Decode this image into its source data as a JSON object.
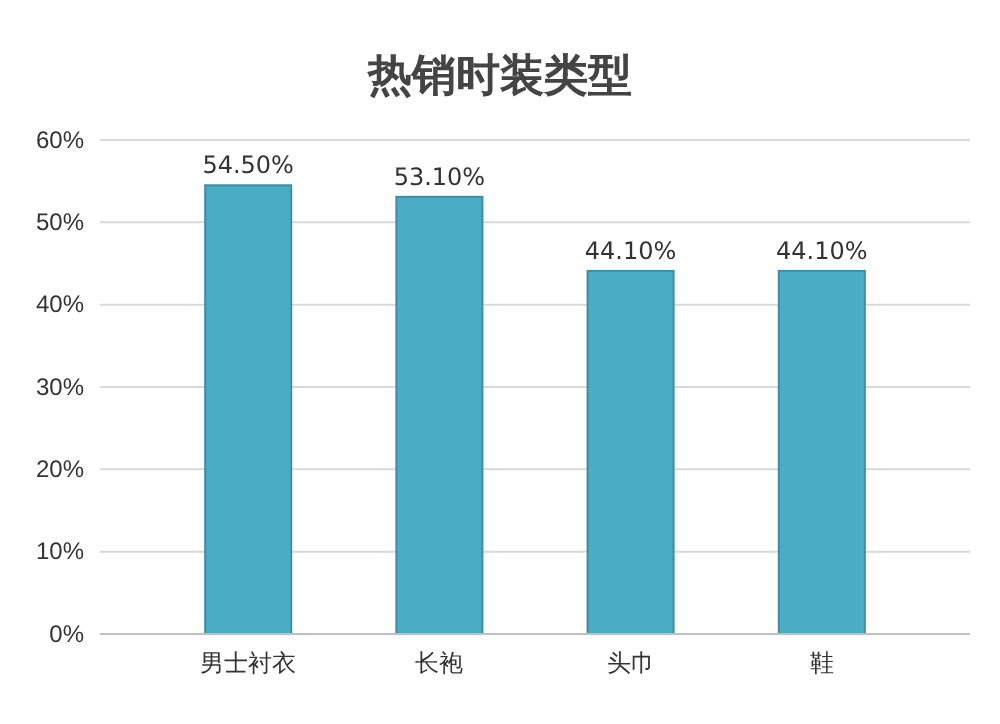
{
  "chart_data": {
    "type": "bar",
    "title": "热销时装类型",
    "categories": [
      "男士衬衣",
      "长袍",
      "头巾",
      "鞋"
    ],
    "values": [
      54.5,
      53.1,
      44.1,
      44.1
    ],
    "value_labels": [
      "54.50%",
      "53.10%",
      "44.10%",
      "44.10%"
    ],
    "color": "#4bacc6",
    "ylim": [
      0,
      60
    ],
    "yticks": [
      {
        "value": 0,
        "label": "0%"
      },
      {
        "value": 10,
        "label": "10%"
      },
      {
        "value": 20,
        "label": "20%"
      },
      {
        "value": 30,
        "label": "30%"
      },
      {
        "value": 40,
        "label": "40%"
      },
      {
        "value": 50,
        "label": "50%"
      },
      {
        "value": 60,
        "label": "60%"
      }
    ],
    "grid": "y"
  }
}
